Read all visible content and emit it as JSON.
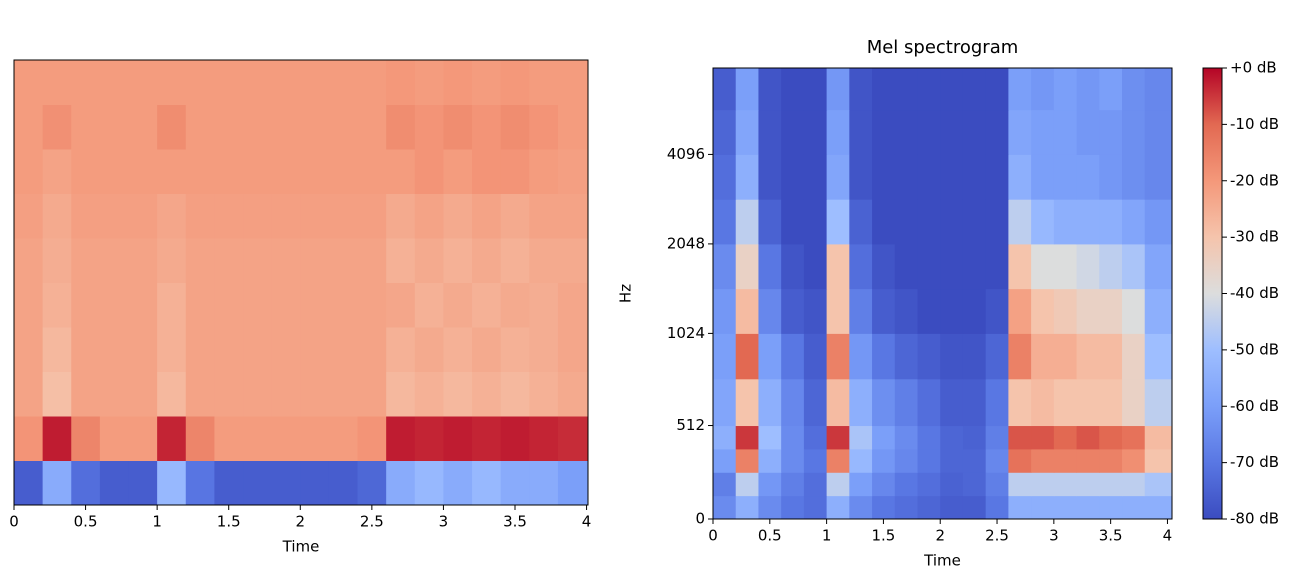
{
  "chart_data": [
    {
      "type": "heatmap",
      "xlabel": "Time",
      "colormap": "coolwarm",
      "clim": [
        0,
        1
      ],
      "xlim": [
        0,
        4.01
      ],
      "xticks": [
        0,
        0.5,
        1,
        1.5,
        2,
        2.5,
        3,
        3.5,
        4
      ],
      "x_edges": [
        0,
        0.2,
        0.4,
        0.6,
        0.8,
        1.0,
        1.2,
        1.4,
        1.6,
        1.8,
        2.0,
        2.2,
        2.4,
        2.6,
        2.8,
        3.0,
        3.2,
        3.4,
        3.6,
        3.8,
        4.01
      ],
      "z": [
        [
          0.05,
          0.3,
          0.1,
          0.05,
          0.05,
          0.35,
          0.12,
          0.05,
          0.05,
          0.05,
          0.05,
          0.05,
          0.08,
          0.3,
          0.35,
          0.3,
          0.35,
          0.3,
          0.3,
          0.25
        ],
        [
          0.76,
          0.97,
          0.8,
          0.74,
          0.74,
          0.96,
          0.8,
          0.74,
          0.74,
          0.74,
          0.74,
          0.74,
          0.76,
          0.97,
          0.96,
          0.97,
          0.96,
          0.97,
          0.96,
          0.95
        ],
        [
          0.72,
          0.64,
          0.72,
          0.72,
          0.72,
          0.66,
          0.72,
          0.72,
          0.72,
          0.72,
          0.72,
          0.72,
          0.72,
          0.66,
          0.68,
          0.66,
          0.68,
          0.66,
          0.68,
          0.7
        ],
        [
          0.72,
          0.66,
          0.72,
          0.72,
          0.72,
          0.68,
          0.72,
          0.72,
          0.72,
          0.72,
          0.72,
          0.72,
          0.72,
          0.68,
          0.7,
          0.68,
          0.7,
          0.68,
          0.69,
          0.71
        ],
        [
          0.72,
          0.68,
          0.72,
          0.72,
          0.72,
          0.68,
          0.72,
          0.72,
          0.72,
          0.72,
          0.72,
          0.72,
          0.72,
          0.71,
          0.68,
          0.7,
          0.68,
          0.7,
          0.69,
          0.71
        ],
        [
          0.72,
          0.69,
          0.72,
          0.72,
          0.72,
          0.7,
          0.72,
          0.72,
          0.72,
          0.72,
          0.72,
          0.72,
          0.72,
          0.68,
          0.7,
          0.68,
          0.7,
          0.68,
          0.7,
          0.7
        ],
        [
          0.73,
          0.7,
          0.73,
          0.73,
          0.73,
          0.71,
          0.73,
          0.73,
          0.73,
          0.73,
          0.73,
          0.73,
          0.73,
          0.7,
          0.72,
          0.7,
          0.72,
          0.7,
          0.72,
          0.72
        ],
        [
          0.74,
          0.72,
          0.74,
          0.74,
          0.74,
          0.74,
          0.74,
          0.74,
          0.74,
          0.74,
          0.74,
          0.74,
          0.74,
          0.74,
          0.76,
          0.74,
          0.76,
          0.76,
          0.74,
          0.73
        ],
        [
          0.74,
          0.77,
          0.74,
          0.74,
          0.74,
          0.78,
          0.74,
          0.74,
          0.74,
          0.74,
          0.74,
          0.74,
          0.74,
          0.78,
          0.76,
          0.78,
          0.76,
          0.78,
          0.76,
          0.74
        ],
        [
          0.74,
          0.74,
          0.74,
          0.74,
          0.74,
          0.74,
          0.74,
          0.74,
          0.74,
          0.74,
          0.74,
          0.74,
          0.74,
          0.75,
          0.74,
          0.75,
          0.74,
          0.75,
          0.74,
          0.74
        ]
      ]
    },
    {
      "type": "heatmap",
      "title": "Mel spectrogram",
      "xlabel": "Time",
      "ylabel": "Hz",
      "colormap": "coolwarm",
      "clim": [
        -80,
        0
      ],
      "yscale": "symlog",
      "xlim": [
        0,
        4.04
      ],
      "xticks": [
        0,
        0.5,
        1,
        1.5,
        2,
        2.5,
        3,
        3.5,
        4
      ],
      "ylim": [
        0,
        8000
      ],
      "yticks": [
        0,
        512,
        1024,
        2048,
        4096
      ],
      "x_edges": [
        0,
        0.2,
        0.4,
        0.6,
        0.8,
        1.0,
        1.2,
        1.4,
        1.6,
        1.8,
        2.0,
        2.2,
        2.4,
        2.6,
        2.8,
        3.0,
        3.2,
        3.4,
        3.6,
        3.8,
        4.04
      ],
      "y_edges": [
        0,
        128,
        256,
        384,
        512,
        768,
        1024,
        1448,
        2048,
        2896,
        4096,
        5793,
        8000
      ],
      "colorbar_ticks": [
        {
          "value": 0,
          "label": "+0 dB"
        },
        {
          "value": -10,
          "label": "-10 dB"
        },
        {
          "value": -20,
          "label": "-20 dB"
        },
        {
          "value": -30,
          "label": "-30 dB"
        },
        {
          "value": -40,
          "label": "-40 dB"
        },
        {
          "value": -50,
          "label": "-50 dB"
        },
        {
          "value": -60,
          "label": "-60 dB"
        },
        {
          "value": -70,
          "label": "-70 dB"
        },
        {
          "value": -80,
          "label": "-80 dB"
        }
      ],
      "z": [
        [
          -65,
          -55,
          -65,
          -70,
          -72,
          -55,
          -65,
          -70,
          -72,
          -74,
          -76,
          -76,
          -70,
          -55,
          -55,
          -55,
          -55,
          -55,
          -55,
          -55
        ],
        [
          -68,
          -45,
          -62,
          -68,
          -72,
          -45,
          -60,
          -66,
          -70,
          -72,
          -75,
          -74,
          -68,
          -45,
          -45,
          -45,
          -45,
          -45,
          -45,
          -48
        ],
        [
          -60,
          -15,
          -55,
          -65,
          -70,
          -15,
          -52,
          -62,
          -66,
          -70,
          -74,
          -74,
          -66,
          -12,
          -15,
          -15,
          -15,
          -15,
          -18,
          -30
        ],
        [
          -55,
          -5,
          -50,
          -65,
          -72,
          -5,
          -48,
          -60,
          -65,
          -70,
          -74,
          -75,
          -68,
          -8,
          -8,
          -10,
          -8,
          -10,
          -12,
          -28
        ],
        [
          -58,
          -30,
          -55,
          -66,
          -74,
          -28,
          -55,
          -64,
          -68,
          -72,
          -76,
          -76,
          -70,
          -30,
          -28,
          -30,
          -30,
          -30,
          -35,
          -45
        ],
        [
          -60,
          -10,
          -60,
          -70,
          -76,
          -15,
          -62,
          -70,
          -74,
          -76,
          -78,
          -78,
          -74,
          -15,
          -25,
          -25,
          -28,
          -28,
          -35,
          -50
        ],
        [
          -62,
          -28,
          -66,
          -76,
          -78,
          -30,
          -68,
          -76,
          -78,
          -80,
          -80,
          -80,
          -78,
          -22,
          -30,
          -32,
          -35,
          -35,
          -40,
          -55
        ],
        [
          -65,
          -35,
          -70,
          -78,
          -80,
          -30,
          -72,
          -78,
          -80,
          -80,
          -80,
          -80,
          -80,
          -30,
          -40,
          -40,
          -42,
          -45,
          -48,
          -58
        ],
        [
          -70,
          -45,
          -75,
          -80,
          -80,
          -50,
          -75,
          -80,
          -80,
          -80,
          -80,
          -80,
          -80,
          -45,
          -52,
          -55,
          -55,
          -55,
          -58,
          -62
        ],
        [
          -72,
          -55,
          -78,
          -80,
          -80,
          -58,
          -78,
          -80,
          -80,
          -80,
          -80,
          -80,
          -80,
          -55,
          -60,
          -60,
          -60,
          -62,
          -64,
          -66
        ],
        [
          -74,
          -58,
          -78,
          -80,
          -80,
          -60,
          -78,
          -80,
          -80,
          -80,
          -80,
          -80,
          -80,
          -58,
          -60,
          -60,
          -62,
          -62,
          -64,
          -66
        ],
        [
          -76,
          -60,
          -78,
          -80,
          -80,
          -62,
          -78,
          -80,
          -80,
          -80,
          -80,
          -80,
          -80,
          -60,
          -62,
          -60,
          -62,
          -60,
          -64,
          -66
        ]
      ]
    }
  ]
}
